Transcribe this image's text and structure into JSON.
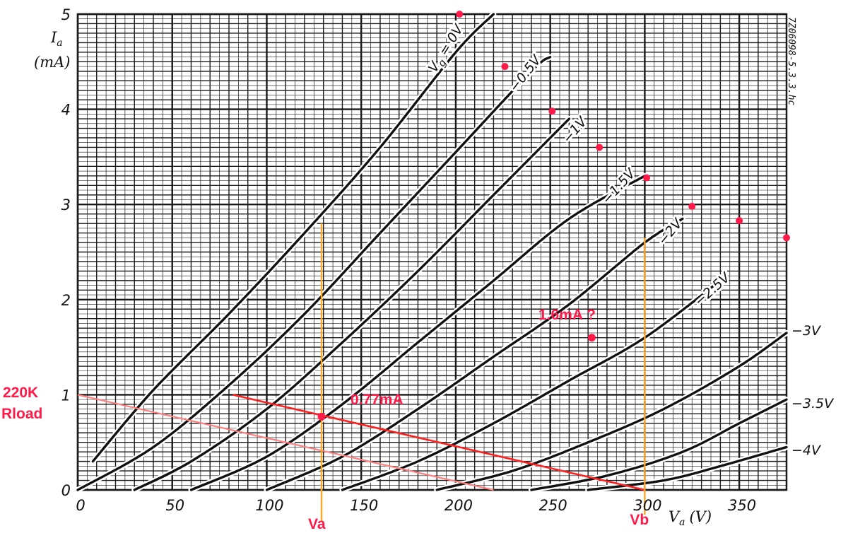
{
  "chart_data": {
    "type": "line",
    "xlabel": "V_a (V)",
    "ylabel": "I_a (mA)",
    "ylabel_line1": "I",
    "ylabel_sub": "a",
    "ylabel_line2": "(mA)",
    "xlabel_main": "V",
    "xlabel_sub": "a",
    "xlabel_unit": "(V)",
    "xlim": [
      0,
      375
    ],
    "ylim": [
      0,
      5
    ],
    "grid": true,
    "reference_code": "7Z06098-5.3.3.hc",
    "x_ticks": [
      "0",
      "50",
      "100",
      "150",
      "200",
      "250",
      "300",
      "350"
    ],
    "y_ticks": [
      "0",
      "1",
      "2",
      "3",
      "4",
      "5"
    ],
    "series": [
      {
        "name": "Vg = 0V",
        "label": "V",
        "label_sub": "g",
        "label_rest": " = 0V",
        "points": [
          [
            8,
            0.3
          ],
          [
            40,
            1.05
          ],
          [
            80,
            1.85
          ],
          [
            120,
            2.7
          ],
          [
            160,
            3.6
          ],
          [
            200,
            4.6
          ],
          [
            220,
            5.0
          ]
        ]
      },
      {
        "name": "-0.5V",
        "label": "−0.5V",
        "points": [
          [
            0,
            0
          ],
          [
            40,
            0.45
          ],
          [
            80,
            1.1
          ],
          [
            120,
            1.85
          ],
          [
            160,
            2.7
          ],
          [
            200,
            3.55
          ],
          [
            240,
            4.4
          ],
          [
            250,
            4.55
          ]
        ]
      },
      {
        "name": "-1V",
        "label": "−1V",
        "points": [
          [
            30,
            0
          ],
          [
            60,
            0.3
          ],
          [
            100,
            0.85
          ],
          [
            140,
            1.55
          ],
          [
            180,
            2.3
          ],
          [
            220,
            3.1
          ],
          [
            260,
            3.9
          ]
        ]
      },
      {
        "name": "-1.5V",
        "label": "−1.5V",
        "points": [
          [
            60,
            0
          ],
          [
            100,
            0.35
          ],
          [
            140,
            0.9
          ],
          [
            180,
            1.55
          ],
          [
            220,
            2.2
          ],
          [
            260,
            2.85
          ],
          [
            300,
            3.3
          ]
        ]
      },
      {
        "name": "-2V",
        "label": "−2V",
        "points": [
          [
            100,
            0
          ],
          [
            140,
            0.35
          ],
          [
            180,
            0.85
          ],
          [
            220,
            1.4
          ],
          [
            260,
            1.95
          ],
          [
            300,
            2.6
          ],
          [
            320,
            2.85
          ]
        ]
      },
      {
        "name": "-2.5V",
        "label": "−2.5V",
        "points": [
          [
            140,
            0
          ],
          [
            180,
            0.3
          ],
          [
            220,
            0.7
          ],
          [
            260,
            1.15
          ],
          [
            300,
            1.6
          ],
          [
            340,
            2.2
          ]
        ]
      },
      {
        "name": "-3V",
        "label": "−3V",
        "points": [
          [
            190,
            0
          ],
          [
            230,
            0.2
          ],
          [
            270,
            0.5
          ],
          [
            310,
            0.85
          ],
          [
            350,
            1.3
          ],
          [
            375,
            1.65
          ]
        ]
      },
      {
        "name": "-3.5V",
        "label": "−3.5V",
        "points": [
          [
            240,
            0
          ],
          [
            280,
            0.15
          ],
          [
            320,
            0.4
          ],
          [
            350,
            0.7
          ],
          [
            375,
            0.95
          ]
        ]
      },
      {
        "name": "-4V",
        "label": "−4V",
        "points": [
          [
            270,
            0
          ],
          [
            310,
            0.1
          ],
          [
            340,
            0.25
          ],
          [
            375,
            0.45
          ]
        ]
      }
    ],
    "annotations": {
      "rload_label_1": "220K",
      "rload_label_2": "Rload",
      "op_point_label": "0.77mA",
      "question_label": "1.6mA ?",
      "va_label": "Va",
      "vb_label": "Vb",
      "rload_line": [
        [
          0,
          1.0
        ],
        [
          220,
          0.0
        ]
      ],
      "load_line": [
        [
          82,
          1.0
        ],
        [
          300,
          0.0
        ]
      ],
      "operating_point": [
        129,
        0.77
      ],
      "question_point": [
        272,
        1.6
      ],
      "va_x": 129,
      "va_top": 2.8,
      "vb_x": 300,
      "vb_top": 2.65,
      "red_dots": [
        [
          202,
          5.0
        ],
        [
          226,
          4.45
        ],
        [
          251,
          3.98
        ],
        [
          276,
          3.6
        ],
        [
          301,
          3.28
        ],
        [
          325,
          2.98
        ],
        [
          350,
          2.83
        ],
        [
          375,
          2.65
        ]
      ]
    },
    "colors": {
      "curve": "#111111",
      "grid": "#1a1a1a",
      "annotation": "#ff1a4a",
      "load_line": "#ff2020",
      "rload_line": "#ff8080",
      "va_vb_lines": "#ffa726"
    }
  }
}
